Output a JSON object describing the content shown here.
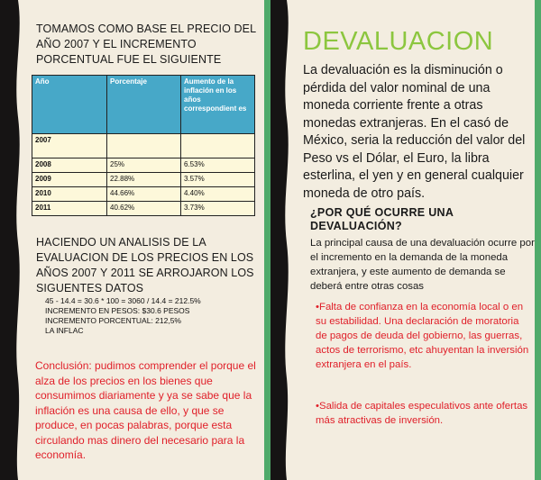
{
  "left": {
    "heading1": "TOMAMOS COMO BASE EL PRECIO DEL AÑO 2007 Y EL INCREMENTO PORCENTUAL FUE EL SIGUIENTE",
    "table": {
      "headers": [
        "Año",
        "Porcentaje",
        "Aumento de la inflación en los años correspondient es"
      ],
      "rows": [
        [
          "2007",
          "",
          ""
        ],
        [
          "2008",
          "25%",
          "6.53%"
        ],
        [
          "2009",
          "22.88%",
          "3.57%"
        ],
        [
          "2010",
          "44.66%",
          "4.40%"
        ],
        [
          "2011",
          "40.62%",
          "3.73%"
        ]
      ]
    },
    "heading2": "HACIENDO UN ANALISIS DE LA EVALUACION DE LOS PRECIOS EN LOS AÑOS 2007 Y 2011 SE ARROJARON LOS SIGUENTES DATOS",
    "calc": [
      "45 - 14.4 = 30.6 * 100 = 3060 / 14.4 = 212.5%",
      "INCREMENTO EN PESOS: $30.6 PESOS",
      "INCREMENTO PORCENTUAL: 212,5%",
      "LA INFLAC"
    ],
    "conclusion": "Conclusión: pudimos comprender el porque el alza de los precios en los bienes que consumimos diariamente y ya se sabe que la inflación es una causa de ello, y que se produce, en pocas palabras, porque esta circulando mas dinero del necesario para la economía."
  },
  "right": {
    "title": "DEVALUACION",
    "paragraph": "La devaluación es la disminución o pérdida del valor nominal de una moneda corriente frente a otras monedas extranjeras. En el casó de México, seria la reducción del valor del Peso vs el Dólar, el Euro, la libra esterlina, el yen y en general cualquier moneda de otro país.",
    "subheading": "¿POR QUÉ OCURRE UNA DEVALUACIÓN?",
    "paragraph2": "La principal causa de una devaluación ocurre por el incremento en la demanda de la moneda extranjera, y este aumento de demanda se deberá entre otras cosas",
    "bullets": [
      "•Falta de confianza en la economía local o en su estabilidad. Una declaración de moratoria de pagos de deuda del gobierno, las guerras, actos de terrorismo, etc ahuyentan la inversión extranjera en el país.",
      "•Salida de capitales especulativos ante ofertas más atractivas de inversión."
    ]
  },
  "colors": {
    "title_green": "#8cc63f",
    "table_header": "#47a8c8",
    "accent_red": "#e0202a",
    "edge_green": "#4faa6a",
    "background": "#f3ede0"
  }
}
